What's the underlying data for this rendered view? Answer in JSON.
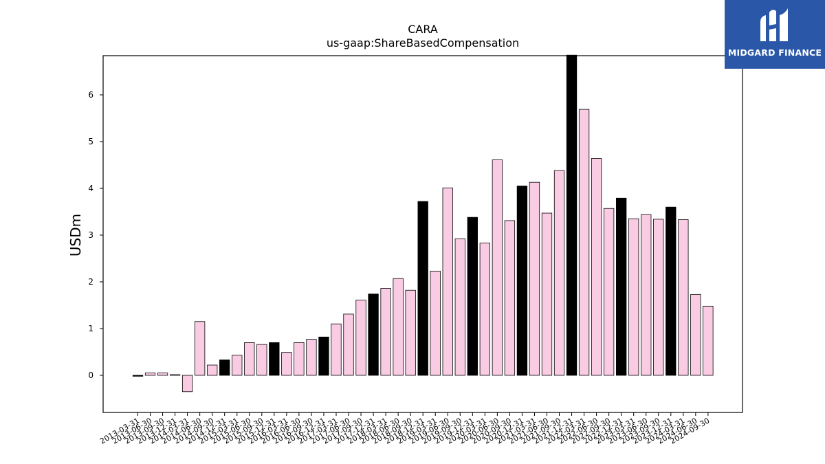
{
  "chart_data": {
    "type": "bar",
    "title": "CARA",
    "subtitle": "us-gaap:ShareBasedCompensation",
    "xlabel": "",
    "ylabel": "USDm",
    "ylim": [
      -0.8,
      6.8
    ],
    "yticks": [
      0,
      1,
      2,
      3,
      4,
      5,
      6
    ],
    "grid": false,
    "colors": {
      "quarter": "#f9cce4",
      "annual": "#000000",
      "edge": "#000000"
    },
    "categories": [
      "2013-03-31",
      "2013-06-30",
      "2013-09-30",
      "2013-12-31",
      "2014-03-31",
      "2014-06-30",
      "2014-09-30",
      "2014-12-31",
      "2015-03-31",
      "2015-06-30",
      "2015-09-30",
      "2015-12-31",
      "2016-03-31",
      "2016-06-30",
      "2016-09-30",
      "2016-12-31",
      "2017-03-31",
      "2017-06-30",
      "2017-09-30",
      "2017-12-31",
      "2018-03-31",
      "2018-06-30",
      "2018-09-30",
      "2018-12-31",
      "2019-03-31",
      "2019-06-30",
      "2019-09-30",
      "2019-12-31",
      "2020-03-31",
      "2020-06-30",
      "2020-09-30",
      "2020-12-31",
      "2021-03-31",
      "2021-06-30",
      "2021-09-30",
      "2021-12-31",
      "2022-03-31",
      "2022-06-30",
      "2022-09-30",
      "2022-12-31",
      "2023-03-31",
      "2023-06-30",
      "2023-09-30",
      "2023-12-31",
      "2024-03-31",
      "2024-06-30",
      "2024-09-30"
    ],
    "values": [
      -0.02,
      0.05,
      0.05,
      0.01,
      -0.35,
      1.15,
      0.22,
      0.33,
      0.43,
      0.7,
      0.66,
      0.7,
      0.49,
      0.7,
      0.77,
      0.82,
      1.1,
      1.31,
      1.61,
      1.74,
      1.86,
      2.07,
      1.82,
      3.72,
      2.23,
      4.01,
      2.92,
      3.38,
      2.83,
      4.61,
      3.31,
      4.05,
      4.13,
      3.47,
      4.38,
      6.85,
      5.69,
      4.64,
      3.57,
      3.79,
      3.35,
      3.44,
      3.34,
      3.6,
      3.33,
      1.73,
      1.48
    ],
    "annual_flags": [
      1,
      0,
      0,
      0,
      0,
      0,
      0,
      1,
      0,
      0,
      0,
      1,
      0,
      0,
      0,
      1,
      0,
      0,
      0,
      1,
      0,
      0,
      0,
      1,
      0,
      0,
      0,
      1,
      0,
      0,
      0,
      1,
      0,
      0,
      0,
      1,
      0,
      0,
      0,
      1,
      0,
      0,
      0,
      1,
      0,
      0,
      0
    ]
  },
  "logo": {
    "text": "MIDGARD FINANCE",
    "background": "#2b57a8"
  }
}
